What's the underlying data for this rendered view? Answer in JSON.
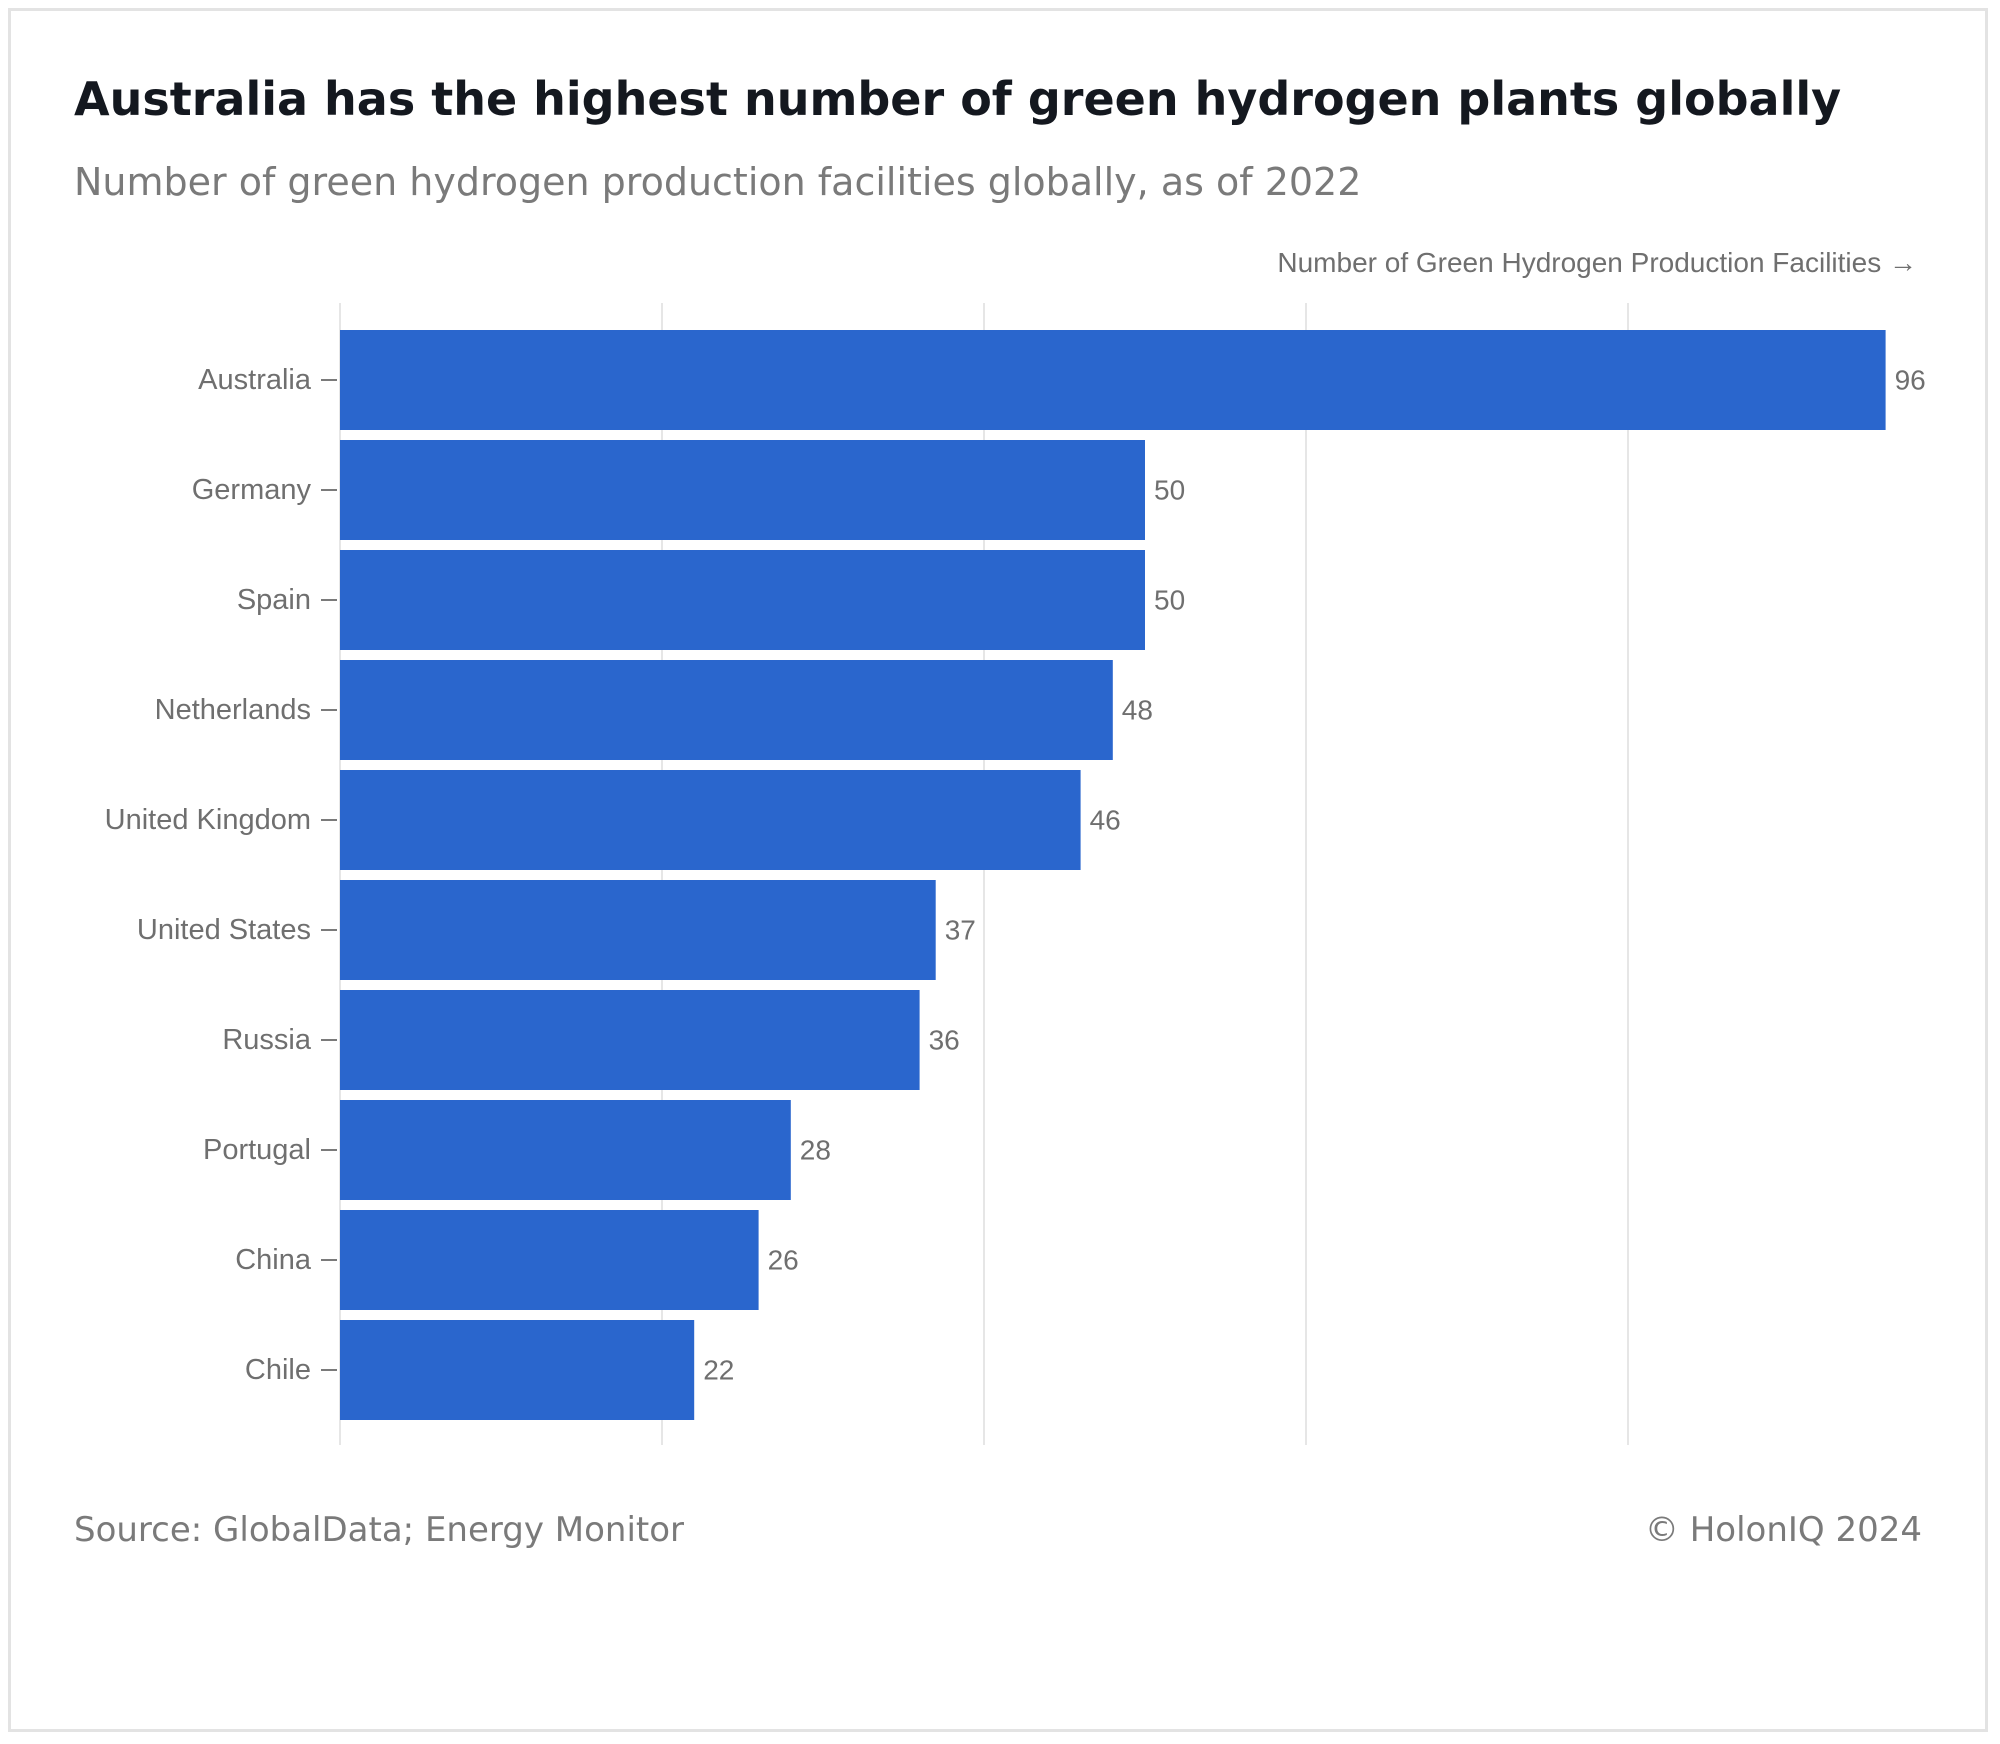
{
  "header": {
    "title": "Australia has the highest number of green hydrogen plants globally",
    "subtitle": "Number of green hydrogen production facilities globally, as of 2022"
  },
  "footer": {
    "source": "Source: GlobalData; Energy Monitor",
    "credit": "© HolonIQ 2024"
  },
  "colors": {
    "bar": "#2a66cd",
    "grid": "#e6e6e6",
    "text": "#6f6f6f"
  },
  "chart_data": {
    "type": "bar",
    "orientation": "horizontal",
    "title": "Australia has the highest number of green hydrogen plants globally",
    "subtitle": "Number of green hydrogen production facilities globally, as of 2022",
    "xlabel": "Number of Green Hydrogen Production Facilities →",
    "ylabel": "",
    "categories": [
      "Australia",
      "Germany",
      "Spain",
      "Netherlands",
      "United Kingdom",
      "United States",
      "Russia",
      "Portugal",
      "China",
      "Chile"
    ],
    "values": [
      96,
      50,
      50,
      48,
      46,
      37,
      36,
      28,
      26,
      22
    ],
    "xlim": [
      0,
      100
    ],
    "gridlines_x": [
      0,
      20,
      40,
      60,
      80
    ],
    "grid": true,
    "data_labels": true,
    "legend": "none"
  }
}
